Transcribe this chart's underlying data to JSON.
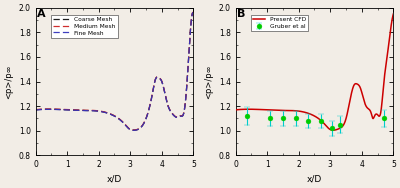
{
  "panel_A_label": "A",
  "panel_B_label": "B",
  "xlabel": "x/D",
  "ylabel": "<p>/p∞",
  "xlim": [
    0,
    5
  ],
  "ylim": [
    0.8,
    2.0
  ],
  "yticks": [
    0.8,
    1.0,
    1.2,
    1.4,
    1.6,
    1.8,
    2.0
  ],
  "xticks": [
    0,
    1,
    2,
    3,
    4,
    5
  ],
  "legend_A": [
    "Coarse Mesh",
    "Medium Mesh",
    "Fine Mesh"
  ],
  "legend_A_colors": [
    "#111111",
    "#cc2222",
    "#3333bb"
  ],
  "legend_B_order": [
    "Gruber et al",
    "Present CFD"
  ],
  "gruber_x": [
    0.35,
    1.1,
    1.5,
    1.9,
    2.3,
    2.7,
    3.05,
    3.3,
    4.7
  ],
  "gruber_y": [
    1.12,
    1.1,
    1.1,
    1.1,
    1.08,
    1.08,
    1.02,
    1.05,
    1.1
  ],
  "gruber_yerr": [
    0.07,
    0.06,
    0.06,
    0.06,
    0.06,
    0.06,
    0.06,
    0.07,
    0.07
  ],
  "mesh_x_knots": [
    0.0,
    0.5,
    1.0,
    1.5,
    2.0,
    2.2,
    2.5,
    2.8,
    3.0,
    3.1,
    3.3,
    3.5,
    3.7,
    3.8,
    3.9,
    4.0,
    4.1,
    4.2,
    4.3,
    4.4,
    4.5,
    4.6,
    4.7,
    4.8,
    4.85,
    5.0
  ],
  "mesh_y_base": [
    1.17,
    1.175,
    1.17,
    1.165,
    1.16,
    1.15,
    1.12,
    1.06,
    1.01,
    1.005,
    1.02,
    1.1,
    1.3,
    1.42,
    1.43,
    1.4,
    1.3,
    1.2,
    1.15,
    1.12,
    1.11,
    1.12,
    1.15,
    1.4,
    1.6,
    1.95
  ],
  "cfd_x_knots": [
    0.0,
    0.5,
    1.0,
    1.5,
    2.0,
    2.2,
    2.5,
    2.8,
    3.0,
    3.1,
    3.3,
    3.5,
    3.65,
    3.75,
    3.85,
    3.95,
    4.1,
    4.2,
    4.3,
    4.35,
    4.4,
    4.5,
    4.6,
    4.7,
    4.8,
    4.85,
    5.0
  ],
  "cfd_y": [
    1.17,
    1.175,
    1.17,
    1.165,
    1.16,
    1.15,
    1.12,
    1.06,
    1.01,
    1.005,
    1.02,
    1.1,
    1.28,
    1.37,
    1.38,
    1.35,
    1.22,
    1.18,
    1.14,
    1.1,
    1.12,
    1.13,
    1.15,
    1.4,
    1.6,
    1.7,
    1.95
  ],
  "cfd_color": "#cc0000",
  "gruber_color": "#00cc00",
  "error_color": "#00cccc",
  "background_color": "#f2ede6",
  "figsize": [
    4.0,
    1.88
  ],
  "dpi": 100
}
